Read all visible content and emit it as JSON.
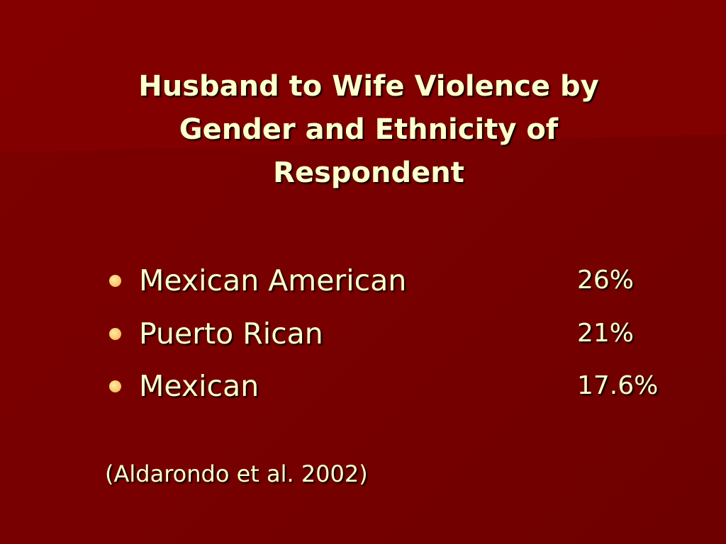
{
  "header": {
    "title": "Husband to Wife Violence by Gender and Ethnicity of Respondent"
  },
  "items": [
    {
      "label": "Mexican American",
      "value": "26%"
    },
    {
      "label": "Puerto Rican",
      "value": "21%"
    },
    {
      "label": "Mexican",
      "value": "17.6%"
    }
  ],
  "citation": "(Aldarondo et al. 2002)"
}
